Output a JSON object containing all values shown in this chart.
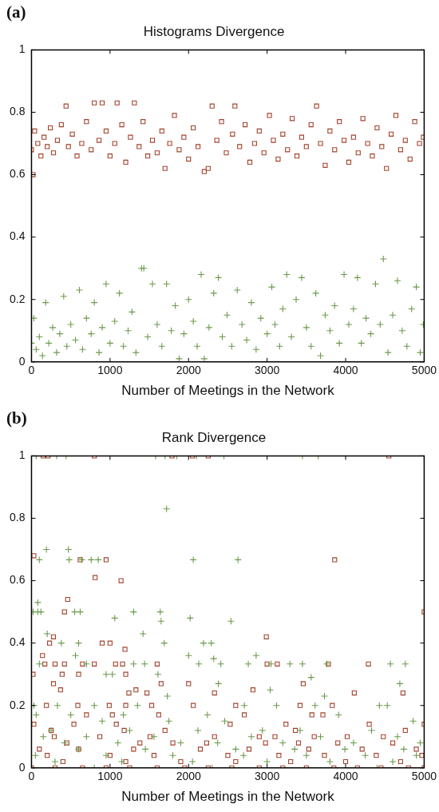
{
  "chart_data": [
    {
      "type": "scatter",
      "title": "Histograms Divergence",
      "xlabel": "Number of Meetings in the Network",
      "annotations": [
        "(a)"
      ],
      "xlim": [
        0,
        5000
      ],
      "xticks": [
        0,
        1000,
        2000,
        3000,
        4000,
        5000
      ],
      "ylim": [
        0,
        1
      ],
      "yticks": [
        0,
        0.2,
        0.4,
        0.6,
        0.8,
        1
      ],
      "grid": false,
      "series": [
        {
          "color": "#a3432b",
          "marker": "square",
          "x": [
            0,
            20,
            40,
            80,
            120,
            160,
            200,
            240,
            280,
            330,
            380,
            440,
            470,
            520,
            580,
            640,
            700,
            760,
            800,
            860,
            900,
            950,
            1000,
            1060,
            1090,
            1150,
            1200,
            1260,
            1310,
            1370,
            1420,
            1480,
            1540,
            1600,
            1660,
            1700,
            1760,
            1820,
            1880,
            1940,
            2000,
            2060,
            2120,
            2200,
            2250,
            2300,
            2360,
            2420,
            2480,
            2560,
            2590,
            2650,
            2720,
            2780,
            2840,
            2900,
            2960,
            3030,
            3080,
            3140,
            3200,
            3260,
            3320,
            3380,
            3440,
            3500,
            3560,
            3630,
            3680,
            3740,
            3800,
            3860,
            3920,
            3980,
            4040,
            4100,
            4160,
            4220,
            4280,
            4340,
            4400,
            4460,
            4520,
            4580,
            4640,
            4700,
            4760,
            4820,
            4880,
            4940,
            4990
          ],
          "values": [
            0.68,
            0.6,
            0.74,
            0.7,
            0.66,
            0.72,
            0.69,
            0.75,
            0.67,
            0.71,
            0.76,
            0.82,
            0.69,
            0.73,
            0.66,
            0.7,
            0.77,
            0.68,
            0.83,
            0.71,
            0.83,
            0.74,
            0.66,
            0.7,
            0.83,
            0.76,
            0.64,
            0.72,
            0.83,
            0.69,
            0.77,
            0.66,
            0.71,
            0.67,
            0.74,
            0.62,
            0.7,
            0.79,
            0.68,
            0.72,
            0.65,
            0.75,
            0.69,
            0.61,
            0.62,
            0.82,
            0.71,
            0.77,
            0.67,
            0.73,
            0.82,
            0.69,
            0.76,
            0.64,
            0.7,
            0.74,
            0.67,
            0.79,
            0.71,
            0.65,
            0.73,
            0.68,
            0.78,
            0.66,
            0.72,
            0.69,
            0.76,
            0.82,
            0.7,
            0.63,
            0.74,
            0.68,
            0.77,
            0.71,
            0.64,
            0.72,
            0.67,
            0.78,
            0.7,
            0.66,
            0.75,
            0.69,
            0.62,
            0.73,
            0.79,
            0.68,
            0.71,
            0.65,
            0.77,
            0.7,
            0.72
          ]
        },
        {
          "color": "#6b9a4c",
          "marker": "cross",
          "x": [
            0,
            30,
            60,
            100,
            140,
            180,
            220,
            270,
            320,
            360,
            410,
            450,
            500,
            560,
            610,
            650,
            700,
            760,
            800,
            860,
            900,
            950,
            1000,
            1060,
            1120,
            1170,
            1230,
            1280,
            1330,
            1400,
            1430,
            1480,
            1540,
            1600,
            1660,
            1720,
            1780,
            1830,
            1880,
            1940,
            2000,
            2060,
            2110,
            2160,
            2200,
            2260,
            2320,
            2380,
            2430,
            2490,
            2550,
            2620,
            2680,
            2740,
            2800,
            2860,
            2920,
            3000,
            3060,
            3100,
            3160,
            3200,
            3250,
            3310,
            3370,
            3440,
            3500,
            3560,
            3620,
            3680,
            3740,
            3800,
            3860,
            3920,
            3980,
            4040,
            4100,
            4150,
            4200,
            4260,
            4320,
            4380,
            4440,
            4480,
            4540,
            4600,
            4660,
            4720,
            4780,
            4840,
            4900,
            4950,
            4990
          ],
          "values": [
            0.06,
            0.14,
            0.04,
            0.08,
            0.02,
            0.19,
            0.06,
            0.11,
            0.03,
            0.09,
            0.21,
            0.05,
            0.12,
            0.07,
            0.23,
            0.04,
            0.14,
            0.09,
            0.19,
            0.03,
            0.11,
            0.25,
            0.06,
            0.13,
            0.22,
            0.05,
            0.1,
            0.16,
            0.03,
            0.3,
            0.3,
            0.08,
            0.25,
            0.12,
            0.05,
            0.25,
            0.1,
            0.18,
            0.01,
            0.09,
            0.2,
            0.13,
            0.05,
            0.28,
            0.01,
            0.11,
            0.22,
            0.27,
            0.08,
            0.15,
            0.05,
            0.23,
            0.12,
            0.07,
            0.19,
            0.04,
            0.14,
            0.09,
            0.24,
            0.12,
            0.05,
            0.17,
            0.28,
            0.08,
            0.2,
            0.27,
            0.11,
            0.05,
            0.22,
            0.02,
            0.15,
            0.1,
            0.18,
            0.06,
            0.28,
            0.12,
            0.17,
            0.27,
            0.06,
            0.14,
            0.09,
            0.25,
            0.12,
            0.33,
            0.03,
            0.15,
            0.26,
            0.1,
            0.05,
            0.17,
            0.24,
            0.03,
            0.12
          ]
        }
      ]
    },
    {
      "type": "scatter",
      "title": "Rank Divergence",
      "xlabel": "Number of Meetings in the Network",
      "annotations": [
        "(b)"
      ],
      "xlim": [
        0,
        5000
      ],
      "xticks": [
        0,
        1000,
        2000,
        3000,
        4000,
        5000
      ],
      "ylim": [
        0,
        1
      ],
      "yticks": [
        0,
        0.2,
        0.4,
        0.6,
        0.8,
        1
      ],
      "grid": false,
      "series": [
        {
          "color": "#a3432b",
          "marker": "square",
          "x": [
            150,
            210,
            800,
            1790,
            2050,
            2250,
            4550,
            30,
            620,
            950,
            3860,
            810,
            1140,
            460,
            420,
            5000,
            280,
            2990,
            230,
            900,
            1000,
            1190,
            140,
            170,
            300,
            420,
            650,
            800,
            1070,
            1160,
            1600,
            3000,
            3130,
            3780,
            4290,
            20,
            390,
            600,
            1200,
            280,
            1650,
            2000,
            3460,
            370,
            1330,
            2820,
            1240,
            1470,
            2330,
            4110,
            4730,
            190,
            590,
            990,
            1200,
            1530,
            2060,
            2600,
            3420,
            3830,
            700,
            1030,
            1620,
            2710,
            3570,
            3710,
            30,
            540,
            1080,
            2530,
            3240,
            4300,
            5000,
            250,
            1180,
            1700,
            3360,
            4760,
            290,
            870,
            1510,
            2330,
            2900,
            3100,
            3600,
            4020,
            4480,
            450,
            1380,
            1800,
            2230,
            2980,
            3400,
            3900,
            4600,
            100,
            600,
            1300,
            2150,
            2770,
            3530,
            4210,
            4900,
            200,
            1000,
            1560,
            2500,
            3150,
            3730,
            4390,
            4970,
            400,
            1200,
            1900,
            2600,
            3300,
            4000,
            4700,
            0,
            300,
            650,
            950,
            1250,
            1600,
            1950,
            2250,
            2550,
            2900,
            3200,
            3500,
            3850,
            4150,
            4450,
            4800,
            5000
          ],
          "values": [
            1,
            1,
            1,
            1,
            1,
            1,
            1,
            0.68,
            0.667,
            0.667,
            0.667,
            0.61,
            0.6,
            0.54,
            0.5,
            0.5,
            0.42,
            0.42,
            0.4,
            0.4,
            0.4,
            0.38,
            0.36,
            0.333,
            0.333,
            0.333,
            0.333,
            0.333,
            0.333,
            0.333,
            0.333,
            0.333,
            0.333,
            0.333,
            0.333,
            0.3,
            0.3,
            0.3,
            0.3,
            0.27,
            0.27,
            0.27,
            0.27,
            0.25,
            0.25,
            0.25,
            0.24,
            0.24,
            0.24,
            0.24,
            0.24,
            0.2,
            0.2,
            0.2,
            0.2,
            0.2,
            0.2,
            0.2,
            0.2,
            0.2,
            0.17,
            0.17,
            0.17,
            0.17,
            0.17,
            0.17,
            0.14,
            0.14,
            0.14,
            0.14,
            0.14,
            0.14,
            0.14,
            0.12,
            0.12,
            0.12,
            0.12,
            0.12,
            0.1,
            0.1,
            0.1,
            0.1,
            0.1,
            0.1,
            0.1,
            0.1,
            0.1,
            0.08,
            0.08,
            0.08,
            0.08,
            0.08,
            0.08,
            0.08,
            0.08,
            0.06,
            0.06,
            0.06,
            0.06,
            0.06,
            0.06,
            0.06,
            0.06,
            0.04,
            0.04,
            0.04,
            0.04,
            0.04,
            0.04,
            0.04,
            0.04,
            0.02,
            0.02,
            0.02,
            0.02,
            0.02,
            0.02,
            0.02,
            0,
            0,
            0,
            0,
            0,
            0,
            0,
            0,
            0,
            0,
            0,
            0,
            0,
            0,
            0,
            0,
            0
          ]
        },
        {
          "color": "#6b9a4c",
          "marker": "cross",
          "x": [
            60,
            320,
            440,
            1580,
            1700,
            1850,
            2100,
            2450,
            3450,
            3650,
            1720,
            190,
            470,
            100,
            480,
            640,
            760,
            850,
            2060,
            2630,
            80,
            20,
            80,
            120,
            550,
            620,
            1300,
            1640,
            1060,
            2020,
            1650,
            2540,
            200,
            1420,
            380,
            600,
            1690,
            2190,
            2290,
            560,
            2000,
            2860,
            2320,
            100,
            700,
            1300,
            1440,
            2130,
            2410,
            2760,
            3050,
            3290,
            3450,
            3760,
            4570,
            4760,
            950,
            1030,
            1610,
            3560,
            2380,
            4690,
            3040,
            1730,
            3730,
            30,
            330,
            800,
            1350,
            2710,
            3120,
            3610,
            4430,
            4530,
            60,
            500,
            1170,
            2240,
            3910,
            900,
            1750,
            2460,
            4860,
            250,
            1250,
            2120,
            2940,
            3420,
            4330,
            150,
            700,
            1560,
            2800,
            3680,
            4660,
            420,
            1100,
            1900,
            2370,
            3200,
            4100,
            4950,
            600,
            1450,
            2600,
            3350,
            3990,
            4740,
            50,
            950,
            1800,
            2700,
            3500,
            4250,
            4900,
            300,
            1150,
            2050,
            3000,
            3800,
            4600,
            800,
            2300,
            4400
          ],
          "values": [
            1,
            1,
            1,
            1,
            1,
            1,
            1,
            1,
            1,
            1,
            0.83,
            0.7,
            0.7,
            0.667,
            0.667,
            0.667,
            0.667,
            0.667,
            0.667,
            0.667,
            0.53,
            0.5,
            0.5,
            0.5,
            0.5,
            0.5,
            0.5,
            0.5,
            0.48,
            0.48,
            0.47,
            0.47,
            0.43,
            0.43,
            0.4,
            0.4,
            0.4,
            0.4,
            0.4,
            0.36,
            0.36,
            0.36,
            0.35,
            0.333,
            0.333,
            0.333,
            0.333,
            0.333,
            0.333,
            0.333,
            0.333,
            0.333,
            0.333,
            0.333,
            0.333,
            0.333,
            0.3,
            0.3,
            0.3,
            0.29,
            0.27,
            0.27,
            0.25,
            0.23,
            0.23,
            0.2,
            0.2,
            0.2,
            0.2,
            0.2,
            0.2,
            0.2,
            0.2,
            0.2,
            0.17,
            0.17,
            0.17,
            0.17,
            0.17,
            0.15,
            0.15,
            0.15,
            0.15,
            0.12,
            0.12,
            0.12,
            0.12,
            0.12,
            0.12,
            0.1,
            0.1,
            0.1,
            0.1,
            0.1,
            0.1,
            0.08,
            0.08,
            0.08,
            0.08,
            0.08,
            0.08,
            0.08,
            0.06,
            0.06,
            0.06,
            0.06,
            0.06,
            0.06,
            0.04,
            0.04,
            0.04,
            0.04,
            0.04,
            0.04,
            0.04,
            0.02,
            0.02,
            0.02,
            0.02,
            0.02,
            0.02,
            0,
            0,
            0
          ]
        }
      ]
    }
  ]
}
